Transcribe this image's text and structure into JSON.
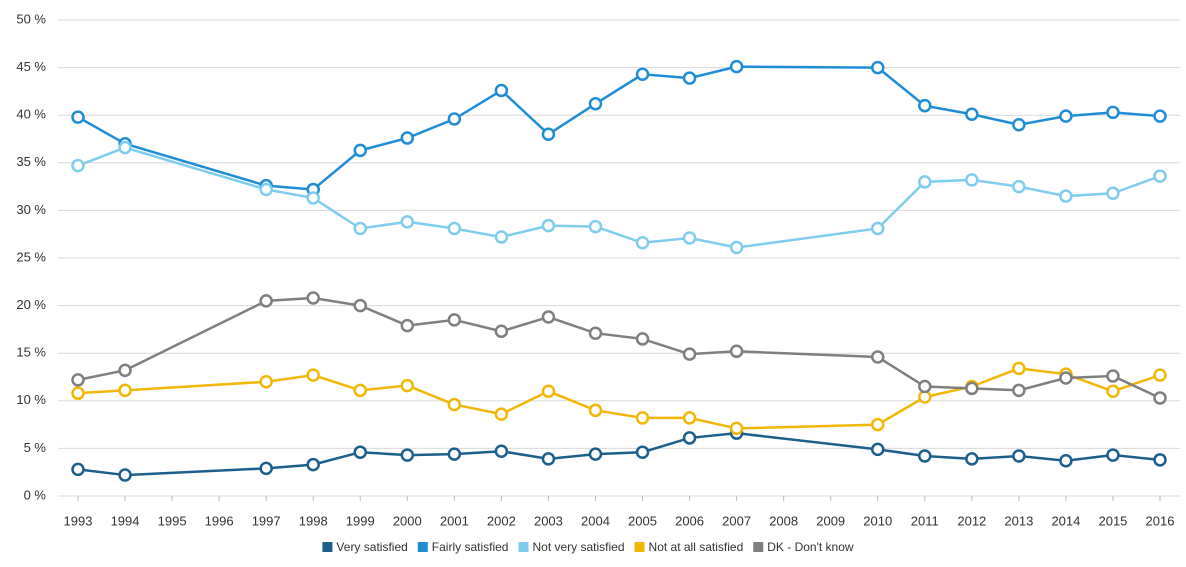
{
  "chart_data": {
    "type": "line",
    "x": [
      1993,
      1994,
      1997,
      1998,
      1999,
      2000,
      2001,
      2002,
      2003,
      2004,
      2005,
      2006,
      2007,
      2010,
      2011,
      2012,
      2013,
      2014,
      2015,
      2016
    ],
    "xlim": [
      1993,
      2016
    ],
    "xticks": [
      1993,
      1994,
      1995,
      1996,
      1997,
      1998,
      1999,
      2000,
      2001,
      2002,
      2003,
      2004,
      2005,
      2006,
      2007,
      2008,
      2009,
      2010,
      2011,
      2012,
      2013,
      2014,
      2015,
      2016
    ],
    "ylim": [
      0,
      50
    ],
    "yticks": [
      {
        "value": 0,
        "label": "0 %"
      },
      {
        "value": 5,
        "label": "5 %"
      },
      {
        "value": 10,
        "label": "10 %"
      },
      {
        "value": 15,
        "label": "15 %"
      },
      {
        "value": 20,
        "label": "20 %"
      },
      {
        "value": 25,
        "label": "25 %"
      },
      {
        "value": 30,
        "label": "30 %"
      },
      {
        "value": 35,
        "label": "35 %"
      },
      {
        "value": 40,
        "label": "40 %"
      },
      {
        "value": 45,
        "label": "45 %"
      },
      {
        "value": 50,
        "label": "50 %"
      }
    ],
    "grid": true,
    "legend": "bottom",
    "series": [
      {
        "name": "Very satisfied",
        "color": "#1b5f8c",
        "values": [
          2.8,
          2.2,
          2.9,
          3.3,
          4.6,
          4.3,
          4.4,
          4.7,
          3.9,
          4.4,
          4.6,
          6.1,
          6.6,
          4.9,
          4.2,
          3.9,
          4.2,
          3.7,
          4.3,
          3.8
        ]
      },
      {
        "name": "Fairly satisfied",
        "color": "#1f8dd6",
        "values": [
          39.8,
          37.0,
          32.6,
          32.2,
          36.3,
          37.6,
          39.6,
          42.6,
          38.0,
          41.2,
          44.3,
          43.9,
          45.1,
          45.0,
          41.0,
          40.1,
          39.0,
          39.9,
          40.3,
          39.9
        ]
      },
      {
        "name": "Not very satisfied",
        "color": "#7fcdee",
        "values": [
          34.7,
          36.6,
          32.2,
          31.3,
          28.1,
          28.8,
          28.1,
          27.2,
          28.4,
          28.3,
          26.6,
          27.1,
          26.1,
          28.1,
          33.0,
          33.2,
          32.5,
          31.5,
          31.8,
          33.6
        ]
      },
      {
        "name": "Not at all satisfied",
        "color": "#f2b705",
        "values": [
          10.8,
          11.1,
          12.0,
          12.7,
          11.1,
          11.6,
          9.6,
          8.6,
          11.0,
          9.0,
          8.2,
          8.2,
          7.1,
          7.5,
          10.4,
          11.5,
          13.4,
          12.8,
          11.0,
          12.7
        ]
      },
      {
        "name": "DK - Don't know",
        "color": "#7f7f7f",
        "values": [
          12.2,
          13.2,
          20.5,
          20.8,
          20.0,
          17.9,
          18.5,
          17.3,
          18.8,
          17.1,
          16.5,
          14.9,
          15.2,
          14.6,
          11.5,
          11.3,
          11.1,
          12.4,
          12.6,
          10.3
        ]
      }
    ]
  }
}
